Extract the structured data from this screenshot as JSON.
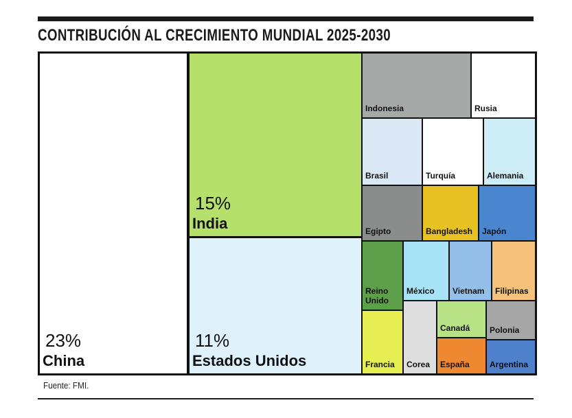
{
  "header": {
    "title": "CONTRIBUCIÓN AL CRECIMIENTO MUNDIAL 2025-2030"
  },
  "footer": {
    "source": "Fuente: FMI."
  },
  "chart_data": {
    "type": "treemap",
    "title": "CONTRIBUCIÓN AL CRECIMIENTO MUNDIAL 2025-2030",
    "units": "%",
    "items": [
      {
        "name": "China",
        "value_label": "23%",
        "color": "#ffffff"
      },
      {
        "name": "India",
        "value_label": "15%",
        "color": "#b5e06b"
      },
      {
        "name": "Estados Unidos",
        "value_label": "11%",
        "color": "#dff2fb"
      },
      {
        "name": "Indonesia",
        "color": "#a7a9a8"
      },
      {
        "name": "Rusia",
        "color": "#ffffff"
      },
      {
        "name": "Brasil",
        "color": "#dae8f5"
      },
      {
        "name": "Turquía",
        "color": "#ffffff"
      },
      {
        "name": "Alemania",
        "color": "#cdeef7"
      },
      {
        "name": "Egipto",
        "color": "#8b8d8d"
      },
      {
        "name": "Bangladesh",
        "color": "#e8c222"
      },
      {
        "name": "Japón",
        "color": "#4a86cf"
      },
      {
        "name": "Reino Unido",
        "color": "#5da049"
      },
      {
        "name": "México",
        "color": "#a7e2f6"
      },
      {
        "name": "Vietnam",
        "color": "#93bfe8"
      },
      {
        "name": "Filipinas",
        "color": "#f4c27a"
      },
      {
        "name": "Francia",
        "color": "#e7ee52"
      },
      {
        "name": "Corea",
        "color": "#dedede"
      },
      {
        "name": "Canadá",
        "color": "#b8e286"
      },
      {
        "name": "España",
        "color": "#ee8831"
      },
      {
        "name": "Polonia",
        "color": "#a6a6a6"
      },
      {
        "name": "Argentina",
        "color": "#4f80cc"
      }
    ]
  }
}
